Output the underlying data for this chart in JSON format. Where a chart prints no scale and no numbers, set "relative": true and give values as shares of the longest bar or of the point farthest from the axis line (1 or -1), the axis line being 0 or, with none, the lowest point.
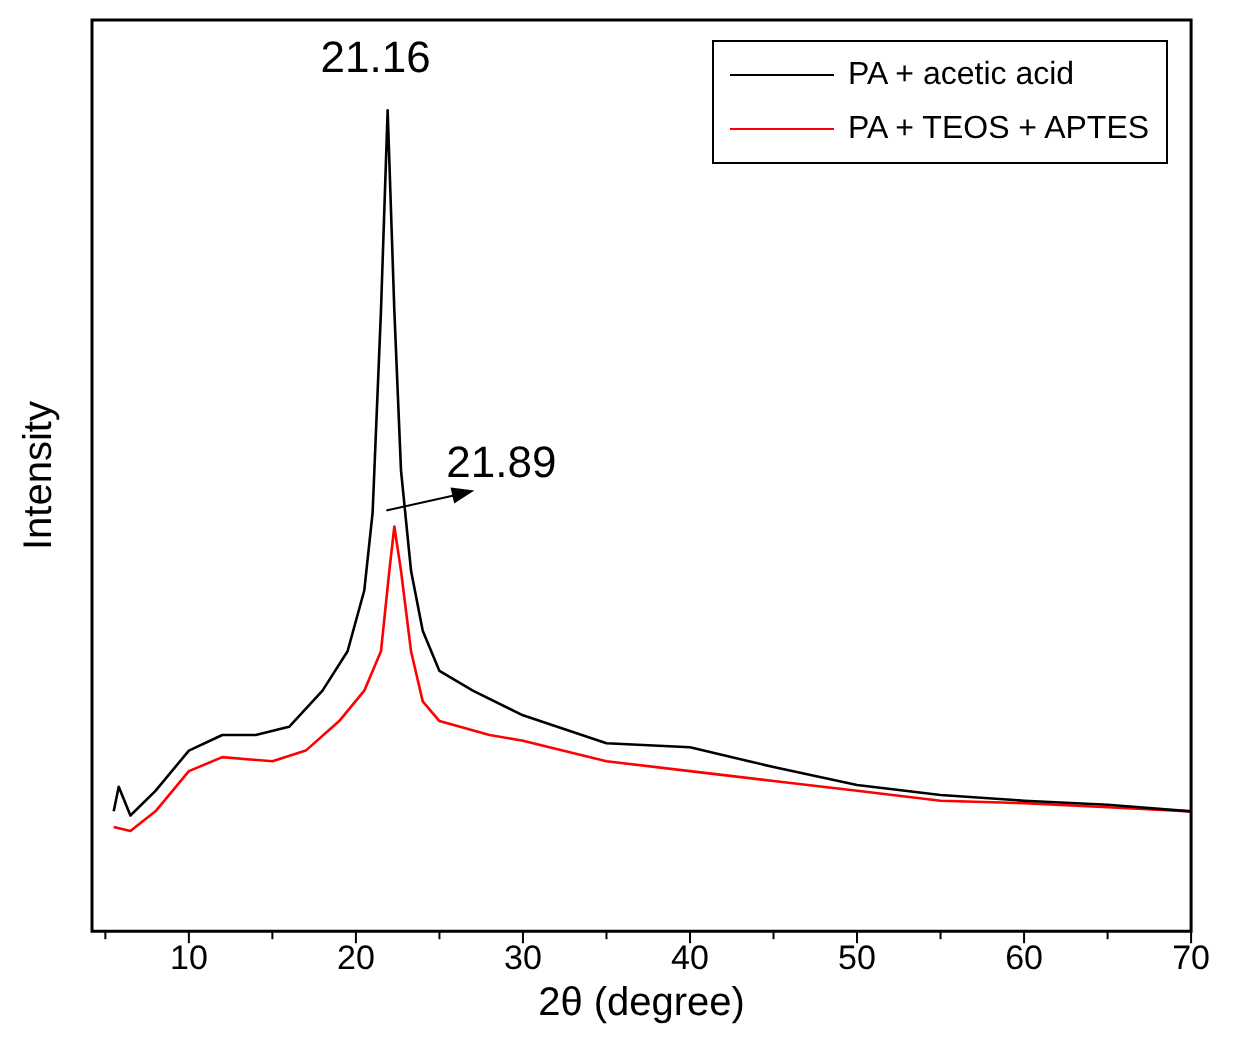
{
  "chart_data": {
    "type": "line",
    "xlabel": "2θ (degree)",
    "ylabel": "Intensity",
    "relative": true,
    "xlim": [
      4.2,
      70
    ],
    "xticks": [
      {
        "value": 5,
        "label": null
      },
      10,
      {
        "value": 15,
        "label": null
      },
      20,
      {
        "value": 25,
        "label": null
      },
      30,
      {
        "value": 35,
        "label": null
      },
      40,
      {
        "value": 45,
        "label": null
      },
      50,
      {
        "value": 55,
        "label": null
      },
      60,
      {
        "value": 65,
        "label": null
      },
      70
    ],
    "grid": false,
    "legend": "top right",
    "marker": "none",
    "line_style": "solid",
    "annotations": [
      {
        "text": "21.16",
        "x": 21.9,
        "y": 1
      },
      {
        "text": "21.89",
        "x": 22.3,
        "y": 0.493
      }
    ],
    "series": [
      {
        "name": "PA + acetic acid",
        "color": "#000000",
        "x": [
          5.5,
          5.8,
          6.5,
          8,
          10,
          12,
          14,
          16,
          18,
          19.5,
          20.5,
          21,
          21.5,
          21.9,
          22.3,
          22.7,
          23.3,
          24,
          25,
          27,
          30,
          35,
          40,
          45,
          50,
          55,
          60,
          65,
          70
        ],
        "values": [
          0.146,
          0.176,
          0.141,
          0.171,
          0.22,
          0.239,
          0.239,
          0.249,
          0.293,
          0.341,
          0.415,
          0.51,
          0.756,
          1,
          0.756,
          0.561,
          0.439,
          0.366,
          0.317,
          0.293,
          0.263,
          0.229,
          0.224,
          0.2,
          0.178,
          0.166,
          0.159,
          0.154,
          0.146
        ]
      },
      {
        "name": "PA + TEOS + APTES",
        "color": "#ff0000",
        "x": [
          5.5,
          6.5,
          8,
          10,
          12,
          15,
          17,
          19,
          20.5,
          21.5,
          22,
          22.3,
          22.7,
          23.3,
          24,
          25,
          28,
          30,
          35,
          40,
          45,
          50,
          55,
          60,
          65,
          70
        ],
        "values": [
          0.127,
          0.122,
          0.146,
          0.195,
          0.212,
          0.207,
          0.22,
          0.256,
          0.293,
          0.341,
          0.439,
          0.493,
          0.439,
          0.341,
          0.28,
          0.256,
          0.239,
          0.232,
          0.207,
          0.195,
          0.183,
          0.171,
          0.159,
          0.156,
          0.151,
          0.146
        ]
      }
    ]
  }
}
